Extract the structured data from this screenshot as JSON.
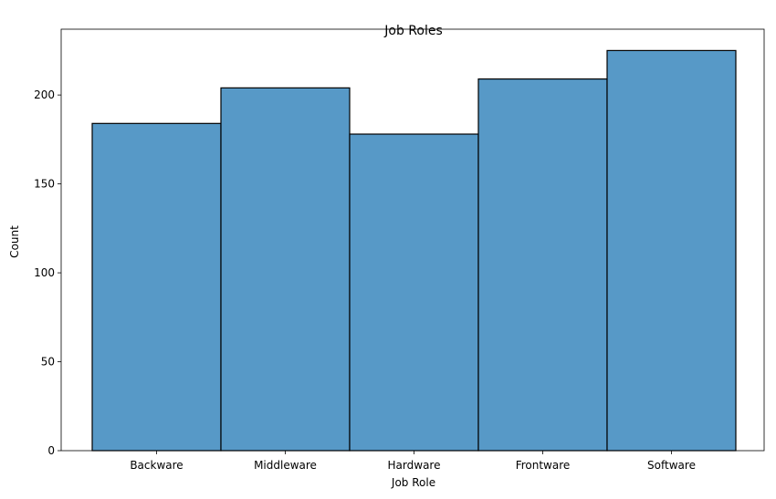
{
  "chart_data": {
    "type": "bar",
    "title": "Job Roles",
    "xlabel": "Job Role",
    "ylabel": "Count",
    "categories": [
      "Backware",
      "Middleware",
      "Hardware",
      "Frontware",
      "Software"
    ],
    "values": [
      184,
      204,
      178,
      209,
      225
    ],
    "ylim": [
      0,
      237
    ],
    "yticks": [
      0,
      50,
      100,
      150,
      200
    ],
    "grid": false,
    "bar_color": "#5799c7",
    "edge_color": "#000000"
  }
}
